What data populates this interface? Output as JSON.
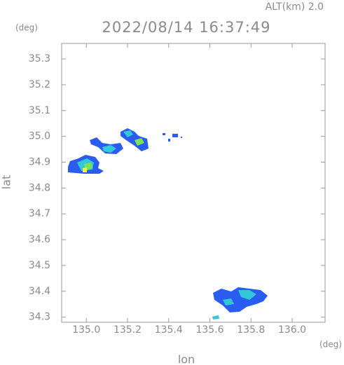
{
  "chart_data": {
    "type": "map",
    "title": "2022/08/14 16:37:49",
    "subtitle": "ALT(km) 2.0",
    "x_label": "lon",
    "y_label": "lat",
    "x_unit": "(deg)",
    "y_unit": "(deg)",
    "xlim": [
      134.88,
      136.16
    ],
    "ylim": [
      34.28,
      35.36
    ],
    "xticks": [
      {
        "value": 135,
        "label": "135.0"
      },
      135.2,
      135.4,
      135.6,
      135.8,
      {
        "value": 136,
        "label": "136.0"
      }
    ],
    "yticks": [
      34.3,
      34.4,
      34.5,
      34.6,
      34.7,
      34.8,
      34.9,
      {
        "value": 35,
        "label": "35.0"
      },
      35.1,
      35.2,
      35.3
    ],
    "grid": false
  }
}
